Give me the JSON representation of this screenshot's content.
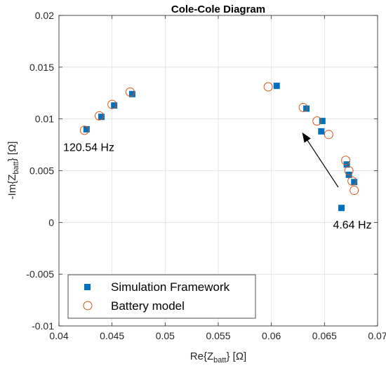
{
  "chart_data": {
    "type": "scatter",
    "title": "Cole-Cole Diagram",
    "xlabel": {
      "prefix": "Re{Z",
      "sub": "batt",
      "suffix": "} [Ω]"
    },
    "ylabel": {
      "prefix": "-Im{Z",
      "sub": "batt",
      "suffix": "} [Ω]"
    },
    "xlim": [
      0.04,
      0.07
    ],
    "ylim": [
      -0.01,
      0.02
    ],
    "xticks": [
      0.04,
      0.045,
      0.05,
      0.055,
      0.06,
      0.065,
      0.07
    ],
    "xtick_labels": [
      "0.04",
      "0.045",
      "0.05",
      "0.055",
      "0.06",
      "0.065",
      "0.07"
    ],
    "yticks": [
      -0.01,
      -0.005,
      0,
      0.005,
      0.01,
      0.015,
      0.02
    ],
    "ytick_labels": [
      "-0.01",
      "-0.005",
      "0",
      "0.005",
      "0.01",
      "0.015",
      "0.02"
    ],
    "grid": true,
    "legend_position": "bottom-left",
    "series": [
      {
        "name": "Simulation Framework",
        "marker": "square",
        "color": "#0072BD",
        "x": [
          0.0426,
          0.044,
          0.0452,
          0.0469,
          0.0605,
          0.0633,
          0.0648,
          0.0647,
          0.0671,
          0.0673,
          0.0678,
          0.0666
        ],
        "y": [
          0.009,
          0.0102,
          0.0113,
          0.0124,
          0.0132,
          0.011,
          0.0098,
          0.0088,
          0.0056,
          0.0046,
          0.0039,
          0.0014
        ]
      },
      {
        "name": "Battery model",
        "marker": "circle",
        "color": "#D95319",
        "x": [
          0.0424,
          0.0438,
          0.045,
          0.0467,
          0.0597,
          0.063,
          0.0643,
          0.0654,
          0.067,
          0.0673,
          0.0676,
          0.0678
        ],
        "y": [
          0.0089,
          0.0103,
          0.0114,
          0.0126,
          0.0131,
          0.0111,
          0.0098,
          0.0085,
          0.006,
          0.005,
          0.004,
          0.0031
        ]
      }
    ],
    "annotations": [
      {
        "text": "120.54 Hz",
        "x": 0.0404,
        "y": 0.0069
      },
      {
        "text": "4.64 Hz",
        "x": 0.0658,
        "y": -0.0006
      }
    ],
    "arrow": {
      "from": [
        0.0663,
        0.0034
      ],
      "to": [
        0.0629,
        0.0087
      ]
    }
  }
}
